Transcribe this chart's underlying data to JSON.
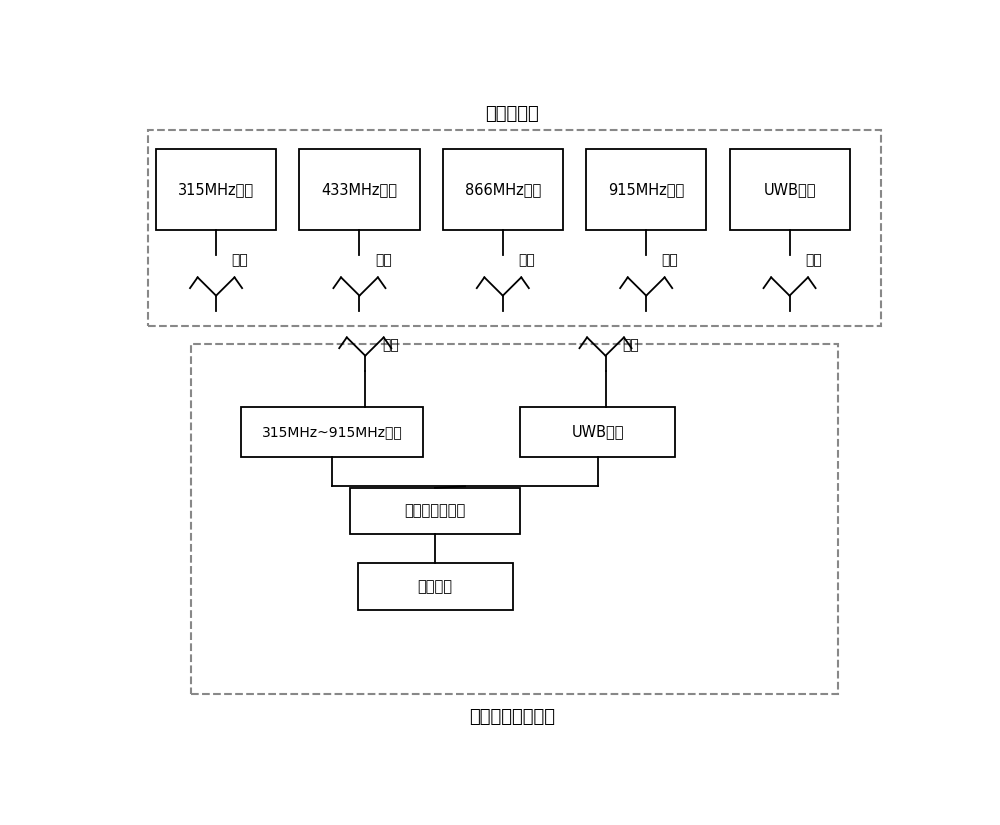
{
  "title_top": "多频率基站",
  "title_bottom": "射频定位通讯单元",
  "top_boxes": [
    "315MHz基站",
    "433MHz基站",
    "866MHz基站",
    "915MHz基站",
    "UWB基站"
  ],
  "antenna_label": "天线",
  "bottom_box1": "315MHz~915MHz模块",
  "bottom_box2": "UWB模块",
  "bottom_box3": "频率自适应模块",
  "bottom_box4": "功能模块",
  "bg_color": "#ffffff",
  "box_edge_color": "#000000",
  "dashed_color": "#888888",
  "text_color": "#000000",
  "font_size": 11,
  "label_font_size": 12
}
